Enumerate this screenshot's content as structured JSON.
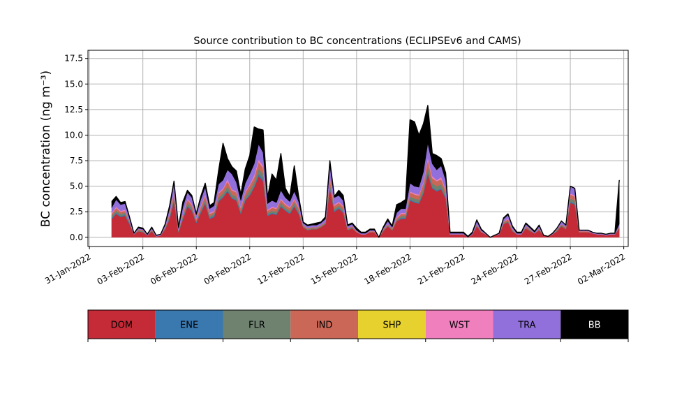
{
  "chart_data": {
    "type": "area",
    "stacked": true,
    "title": "Source contribution to BC concentrations (ECLIPSEv6 and CAMS)",
    "xlabel": "",
    "ylabel": "BC concentration (ng m⁻³)",
    "x_range": [
      "2022-01-30T22:00",
      "2022-03-02T06:00"
    ],
    "ylim": [
      -0.9,
      18.3
    ],
    "grid": true,
    "x_ticks": [
      "31-Jan-2022",
      "03-Feb-2022",
      "06-Feb-2022",
      "09-Feb-2022",
      "12-Feb-2022",
      "15-Feb-2022",
      "18-Feb-2022",
      "21-Feb-2022",
      "24-Feb-2022",
      "27-Feb-2022",
      "02-Mar-2022"
    ],
    "y_ticks": [
      "0.0",
      "2.5",
      "5.0",
      "7.5",
      "10.0",
      "12.5",
      "15.0",
      "17.5"
    ],
    "legend_placement": "below",
    "x": [
      "2022-02-01T06:00",
      "2022-02-01T12:00",
      "2022-02-01T18:00",
      "2022-02-02T00:00",
      "2022-02-02T06:00",
      "2022-02-02T12:00",
      "2022-02-02T18:00",
      "2022-02-03T00:00",
      "2022-02-03T06:00",
      "2022-02-03T12:00",
      "2022-02-03T18:00",
      "2022-02-04T00:00",
      "2022-02-04T06:00",
      "2022-02-04T12:00",
      "2022-02-04T18:00",
      "2022-02-05T00:00",
      "2022-02-05T06:00",
      "2022-02-05T12:00",
      "2022-02-05T18:00",
      "2022-02-06T00:00",
      "2022-02-06T06:00",
      "2022-02-06T12:00",
      "2022-02-06T18:00",
      "2022-02-07T00:00",
      "2022-02-07T06:00",
      "2022-02-07T12:00",
      "2022-02-07T18:00",
      "2022-02-08T00:00",
      "2022-02-08T06:00",
      "2022-02-08T12:00",
      "2022-02-08T18:00",
      "2022-02-09T00:00",
      "2022-02-09T06:00",
      "2022-02-09T12:00",
      "2022-02-09T18:00",
      "2022-02-10T00:00",
      "2022-02-10T06:00",
      "2022-02-10T12:00",
      "2022-02-10T18:00",
      "2022-02-11T00:00",
      "2022-02-11T06:00",
      "2022-02-11T12:00",
      "2022-02-11T18:00",
      "2022-02-12T00:00",
      "2022-02-12T06:00",
      "2022-02-12T12:00",
      "2022-02-12T18:00",
      "2022-02-13T00:00",
      "2022-02-13T06:00",
      "2022-02-13T12:00",
      "2022-02-13T18:00",
      "2022-02-14T00:00",
      "2022-02-14T06:00",
      "2022-02-14T12:00",
      "2022-02-14T18:00",
      "2022-02-15T00:00",
      "2022-02-15T06:00",
      "2022-02-15T12:00",
      "2022-02-15T18:00",
      "2022-02-16T00:00",
      "2022-02-16T06:00",
      "2022-02-16T12:00",
      "2022-02-16T18:00",
      "2022-02-17T00:00",
      "2022-02-17T06:00",
      "2022-02-17T12:00",
      "2022-02-17T18:00",
      "2022-02-18T00:00",
      "2022-02-18T06:00",
      "2022-02-18T12:00",
      "2022-02-18T18:00",
      "2022-02-19T00:00",
      "2022-02-19T06:00",
      "2022-02-19T12:00",
      "2022-02-19T18:00",
      "2022-02-20T00:00",
      "2022-02-20T06:00",
      "2022-02-20T12:00",
      "2022-02-20T18:00",
      "2022-02-21T00:00",
      "2022-02-21T06:00",
      "2022-02-21T12:00",
      "2022-02-21T18:00",
      "2022-02-22T00:00",
      "2022-02-22T06:00",
      "2022-02-22T12:00",
      "2022-02-22T18:00",
      "2022-02-23T00:00",
      "2022-02-23T06:00",
      "2022-02-23T12:00",
      "2022-02-23T18:00",
      "2022-02-24T00:00",
      "2022-02-24T06:00",
      "2022-02-24T12:00",
      "2022-02-24T18:00",
      "2022-02-25T00:00",
      "2022-02-25T06:00",
      "2022-02-25T12:00",
      "2022-02-25T18:00",
      "2022-02-26T00:00",
      "2022-02-26T06:00",
      "2022-02-26T12:00",
      "2022-02-26T18:00",
      "2022-02-27T00:00",
      "2022-02-27T06:00",
      "2022-02-27T12:00",
      "2022-02-27T18:00",
      "2022-02-28T00:00",
      "2022-02-28T06:00",
      "2022-02-28T12:00",
      "2022-02-28T18:00",
      "2022-03-01T00:00",
      "2022-03-01T06:00",
      "2022-03-01T12:00",
      "2022-03-01T18:00"
    ],
    "series": [
      {
        "name": "DOM",
        "color": "#c52a37",
        "values": [
          1.8,
          2.3,
          2.0,
          2.1,
          1.3,
          0.3,
          0.6,
          0.5,
          0.2,
          0.6,
          0.1,
          0.2,
          0.8,
          1.8,
          3.6,
          0.5,
          1.8,
          3.0,
          2.6,
          1.4,
          2.4,
          3.3,
          1.8,
          2.0,
          3.5,
          3.9,
          4.5,
          3.8,
          3.6,
          2.3,
          3.6,
          4.1,
          4.9,
          6.0,
          5.5,
          2.1,
          2.3,
          2.2,
          3.0,
          2.6,
          2.3,
          3.0,
          2.3,
          1.0,
          0.7,
          0.8,
          0.8,
          1.0,
          1.3,
          4.8,
          2.5,
          2.8,
          2.4,
          0.7,
          0.9,
          0.5,
          0.3,
          0.3,
          0.5,
          0.5,
          0.0,
          0.6,
          1.1,
          0.7,
          1.6,
          1.8,
          1.8,
          3.6,
          3.4,
          3.3,
          4.3,
          6.2,
          4.8,
          4.5,
          4.7,
          3.8,
          0.3,
          0.3,
          0.3,
          0.3,
          0.0,
          0.3,
          1.1,
          0.5,
          0.3,
          0.0,
          0.2,
          0.3,
          1.3,
          1.5,
          0.6,
          0.3,
          0.3,
          0.9,
          0.6,
          0.4,
          0.7,
          0.2,
          0.1,
          0.3,
          0.6,
          1.1,
          0.8,
          3.4,
          3.2,
          0.5,
          0.5,
          0.5,
          0.4,
          0.3,
          0.3,
          0.2,
          0.3,
          0.3,
          0.9
        ]
      },
      {
        "name": "ENE",
        "color": "#3a78b0",
        "values": [
          0.1,
          0.1,
          0.1,
          0.1,
          0.1,
          0.0,
          0.0,
          0.0,
          0.0,
          0.0,
          0.0,
          0.0,
          0.0,
          0.1,
          0.1,
          0.0,
          0.1,
          0.1,
          0.1,
          0.1,
          0.1,
          0.1,
          0.1,
          0.1,
          0.1,
          0.1,
          0.1,
          0.1,
          0.1,
          0.1,
          0.1,
          0.1,
          0.1,
          0.2,
          0.2,
          0.1,
          0.1,
          0.1,
          0.1,
          0.1,
          0.1,
          0.1,
          0.1,
          0.0,
          0.0,
          0.0,
          0.0,
          0.0,
          0.0,
          0.1,
          0.1,
          0.1,
          0.1,
          0.0,
          0.0,
          0.0,
          0.0,
          0.0,
          0.0,
          0.0,
          0.0,
          0.0,
          0.0,
          0.0,
          0.0,
          0.1,
          0.1,
          0.1,
          0.1,
          0.1,
          0.1,
          0.2,
          0.1,
          0.1,
          0.1,
          0.1,
          0.0,
          0.0,
          0.0,
          0.0,
          0.0,
          0.0,
          0.0,
          0.0,
          0.0,
          0.0,
          0.0,
          0.0,
          0.0,
          0.0,
          0.0,
          0.0,
          0.0,
          0.0,
          0.0,
          0.0,
          0.0,
          0.0,
          0.0,
          0.0,
          0.0,
          0.0,
          0.0,
          0.1,
          0.1,
          0.0,
          0.0,
          0.0,
          0.0,
          0.0,
          0.0,
          0.0,
          0.0,
          0.0,
          0.0
        ]
      },
      {
        "name": "FLR",
        "color": "#6f8270",
        "values": [
          0.2,
          0.2,
          0.2,
          0.2,
          0.1,
          0.0,
          0.1,
          0.1,
          0.0,
          0.1,
          0.0,
          0.0,
          0.1,
          0.2,
          0.3,
          0.1,
          0.2,
          0.3,
          0.2,
          0.1,
          0.2,
          0.3,
          0.2,
          0.2,
          0.3,
          0.3,
          0.4,
          0.3,
          0.3,
          0.2,
          0.3,
          0.4,
          0.4,
          0.5,
          0.5,
          0.2,
          0.2,
          0.2,
          0.3,
          0.2,
          0.2,
          0.3,
          0.2,
          0.1,
          0.1,
          0.1,
          0.1,
          0.1,
          0.1,
          0.4,
          0.2,
          0.2,
          0.2,
          0.1,
          0.1,
          0.0,
          0.0,
          0.0,
          0.0,
          0.0,
          0.0,
          0.1,
          0.1,
          0.1,
          0.1,
          0.2,
          0.2,
          0.3,
          0.3,
          0.3,
          0.4,
          0.5,
          0.4,
          0.4,
          0.4,
          0.3,
          0.0,
          0.0,
          0.0,
          0.0,
          0.0,
          0.0,
          0.1,
          0.0,
          0.0,
          0.0,
          0.0,
          0.0,
          0.1,
          0.1,
          0.1,
          0.0,
          0.0,
          0.1,
          0.1,
          0.0,
          0.1,
          0.0,
          0.0,
          0.0,
          0.1,
          0.1,
          0.1,
          0.3,
          0.3,
          0.0,
          0.0,
          0.0,
          0.0,
          0.0,
          0.0,
          0.0,
          0.0,
          0.0,
          0.1
        ]
      },
      {
        "name": "IND",
        "color": "#cb6757",
        "values": [
          0.2,
          0.3,
          0.2,
          0.2,
          0.1,
          0.0,
          0.1,
          0.1,
          0.0,
          0.1,
          0.0,
          0.0,
          0.1,
          0.2,
          0.4,
          0.1,
          0.2,
          0.3,
          0.3,
          0.2,
          0.3,
          0.4,
          0.2,
          0.2,
          0.4,
          0.4,
          0.5,
          0.4,
          0.4,
          0.3,
          0.4,
          0.5,
          0.5,
          0.7,
          0.6,
          0.2,
          0.3,
          0.3,
          0.3,
          0.3,
          0.3,
          0.3,
          0.3,
          0.1,
          0.1,
          0.1,
          0.1,
          0.1,
          0.1,
          0.5,
          0.3,
          0.3,
          0.3,
          0.1,
          0.1,
          0.1,
          0.0,
          0.0,
          0.1,
          0.1,
          0.0,
          0.1,
          0.1,
          0.1,
          0.2,
          0.2,
          0.2,
          0.4,
          0.4,
          0.4,
          0.5,
          0.7,
          0.5,
          0.5,
          0.5,
          0.4,
          0.0,
          0.0,
          0.0,
          0.0,
          0.0,
          0.0,
          0.1,
          0.1,
          0.0,
          0.0,
          0.0,
          0.0,
          0.1,
          0.2,
          0.1,
          0.0,
          0.0,
          0.1,
          0.1,
          0.0,
          0.1,
          0.0,
          0.0,
          0.0,
          0.1,
          0.1,
          0.1,
          0.4,
          0.4,
          0.1,
          0.1,
          0.1,
          0.0,
          0.0,
          0.0,
          0.0,
          0.0,
          0.0,
          0.1
        ]
      },
      {
        "name": "SHP",
        "color": "#e6d12e",
        "values": [
          0.0,
          0.0,
          0.0,
          0.0,
          0.0,
          0.0,
          0.0,
          0.0,
          0.0,
          0.0,
          0.0,
          0.0,
          0.0,
          0.0,
          0.0,
          0.0,
          0.0,
          0.0,
          0.0,
          0.0,
          0.0,
          0.0,
          0.0,
          0.0,
          0.0,
          0.0,
          0.0,
          0.0,
          0.0,
          0.0,
          0.0,
          0.0,
          0.0,
          0.0,
          0.0,
          0.0,
          0.0,
          0.0,
          0.0,
          0.0,
          0.0,
          0.0,
          0.0,
          0.0,
          0.0,
          0.0,
          0.0,
          0.0,
          0.0,
          0.0,
          0.0,
          0.0,
          0.0,
          0.0,
          0.0,
          0.0,
          0.0,
          0.0,
          0.0,
          0.0,
          0.0,
          0.0,
          0.0,
          0.0,
          0.0,
          0.0,
          0.0,
          0.0,
          0.0,
          0.0,
          0.0,
          0.0,
          0.0,
          0.0,
          0.0,
          0.0,
          0.0,
          0.0,
          0.0,
          0.0,
          0.0,
          0.0,
          0.0,
          0.0,
          0.0,
          0.0,
          0.0,
          0.0,
          0.0,
          0.0,
          0.0,
          0.0,
          0.0,
          0.0,
          0.0,
          0.0,
          0.0,
          0.0,
          0.0,
          0.0,
          0.0,
          0.0,
          0.0,
          0.0,
          0.0,
          0.0,
          0.0,
          0.0,
          0.0,
          0.0,
          0.0,
          0.0,
          0.0,
          0.0,
          0.0
        ]
      },
      {
        "name": "WST",
        "color": "#f07fbe",
        "values": [
          0.1,
          0.1,
          0.1,
          0.1,
          0.0,
          0.0,
          0.0,
          0.0,
          0.0,
          0.0,
          0.0,
          0.0,
          0.0,
          0.1,
          0.1,
          0.0,
          0.1,
          0.1,
          0.1,
          0.1,
          0.1,
          0.1,
          0.1,
          0.1,
          0.1,
          0.1,
          0.2,
          0.1,
          0.1,
          0.1,
          0.1,
          0.1,
          0.2,
          0.2,
          0.2,
          0.1,
          0.1,
          0.1,
          0.1,
          0.1,
          0.1,
          0.1,
          0.1,
          0.0,
          0.0,
          0.0,
          0.0,
          0.0,
          0.0,
          0.2,
          0.1,
          0.1,
          0.1,
          0.0,
          0.0,
          0.0,
          0.0,
          0.0,
          0.0,
          0.0,
          0.0,
          0.0,
          0.0,
          0.0,
          0.1,
          0.1,
          0.1,
          0.1,
          0.1,
          0.1,
          0.1,
          0.2,
          0.2,
          0.1,
          0.2,
          0.1,
          0.0,
          0.0,
          0.0,
          0.0,
          0.0,
          0.0,
          0.0,
          0.0,
          0.0,
          0.0,
          0.0,
          0.0,
          0.0,
          0.1,
          0.0,
          0.0,
          0.0,
          0.0,
          0.0,
          0.0,
          0.0,
          0.0,
          0.0,
          0.0,
          0.0,
          0.0,
          0.0,
          0.1,
          0.1,
          0.0,
          0.0,
          0.0,
          0.0,
          0.0,
          0.0,
          0.0,
          0.0,
          0.0,
          0.0
        ]
      },
      {
        "name": "TRA",
        "color": "#9270dc",
        "values": [
          0.5,
          0.7,
          0.6,
          0.6,
          0.3,
          0.1,
          0.1,
          0.1,
          0.1,
          0.1,
          0.1,
          0.1,
          0.2,
          0.4,
          0.8,
          0.2,
          0.6,
          0.6,
          0.6,
          0.3,
          0.6,
          0.7,
          0.4,
          0.5,
          0.8,
          0.8,
          0.9,
          1.5,
          0.9,
          0.6,
          0.8,
          1.0,
          1.1,
          1.5,
          1.3,
          0.6,
          0.6,
          0.5,
          0.8,
          0.6,
          0.5,
          0.7,
          0.5,
          0.2,
          0.2,
          0.2,
          0.2,
          0.2,
          0.3,
          1.0,
          0.7,
          0.6,
          0.5,
          0.2,
          0.2,
          0.1,
          0.1,
          0.1,
          0.1,
          0.1,
          0.0,
          0.1,
          0.3,
          0.1,
          0.4,
          0.4,
          0.4,
          0.8,
          0.7,
          0.7,
          1.0,
          1.4,
          1.2,
          1.0,
          1.1,
          0.9,
          0.1,
          0.1,
          0.1,
          0.1,
          0.0,
          0.1,
          0.3,
          0.1,
          0.1,
          0.0,
          0.0,
          0.1,
          0.3,
          0.3,
          0.2,
          0.1,
          0.1,
          0.2,
          0.1,
          0.1,
          0.2,
          0.0,
          0.0,
          0.1,
          0.1,
          0.3,
          0.2,
          0.7,
          0.7,
          0.1,
          0.1,
          0.1,
          0.1,
          0.1,
          0.1,
          0.1,
          0.1,
          0.1,
          0.2
        ]
      },
      {
        "name": "BB",
        "color": "#000000",
        "values": [
          0.6,
          0.3,
          0.2,
          0.2,
          0.1,
          0.0,
          0.1,
          0.1,
          0.0,
          0.1,
          0.0,
          0.0,
          0.1,
          0.3,
          0.2,
          0.1,
          0.5,
          0.2,
          0.2,
          0.1,
          0.3,
          0.4,
          0.3,
          0.3,
          1.3,
          3.6,
          1.1,
          0.7,
          1.1,
          0.6,
          1.4,
          1.8,
          3.6,
          1.5,
          2.2,
          0.6,
          2.6,
          2.2,
          3.6,
          0.9,
          0.5,
          2.5,
          0.5,
          0.1,
          0.1,
          0.1,
          0.2,
          0.1,
          0.2,
          0.5,
          0.1,
          0.5,
          0.5,
          0.1,
          0.1,
          0.2,
          0.1,
          0.1,
          0.1,
          0.1,
          0.0,
          0.1,
          0.2,
          0.1,
          0.8,
          0.6,
          0.9,
          6.2,
          6.3,
          5.1,
          4.7,
          3.7,
          1.0,
          1.4,
          0.7,
          0.7,
          0.1,
          0.1,
          0.1,
          0.1,
          0.1,
          0.1,
          0.1,
          0.1,
          0.0,
          0.0,
          0.0,
          0.0,
          0.1,
          0.1,
          0.1,
          0.1,
          0.1,
          0.1,
          0.1,
          0.1,
          0.1,
          0.0,
          0.0,
          0.0,
          0.0,
          0.0,
          0.0,
          0.0,
          0.0,
          0.0,
          0.0,
          0.0,
          0.0,
          0.0,
          0.0,
          0.0,
          0.0,
          0.0,
          4.3
        ]
      }
    ]
  }
}
